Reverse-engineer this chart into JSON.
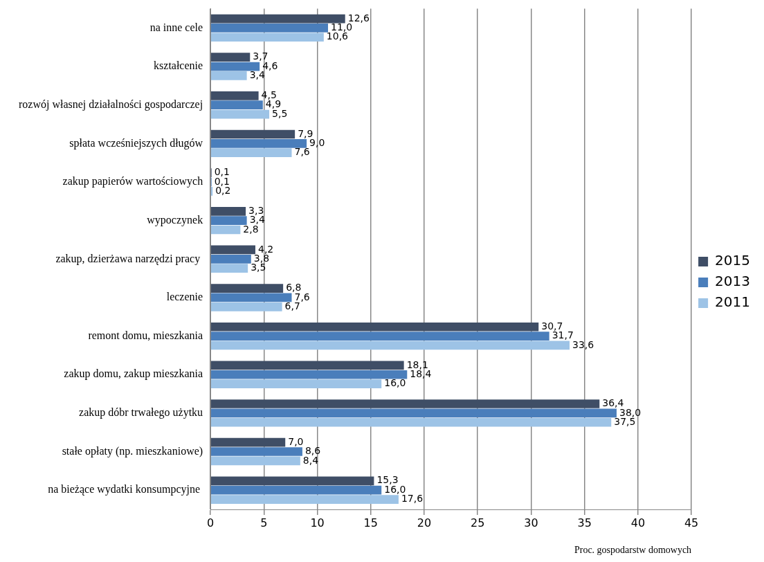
{
  "chart_data": {
    "type": "bar",
    "orientation": "horizontal",
    "xlabel": "Proc. gospodarstw domowych",
    "categories": [
      "na inne cele",
      "kształcenie",
      "rozwój własnej działalności gospodarczej",
      "spłata wcześniejszych długów",
      "zakup papierów wartościowych",
      "wypoczynek",
      "zakup, dzierżawa narzędzi pracy ",
      "leczenie",
      "remont domu, mieszkania",
      "zakup domu, zakup mieszkania",
      "zakup dóbr trwałego użytku",
      "stałe opłaty (np. mieszkaniowe)",
      "na bieżące wydatki konsumpcyjne "
    ],
    "series": [
      {
        "name": "2015",
        "color": "#3f4e66",
        "values": [
          12.6,
          3.7,
          4.5,
          7.9,
          0.1,
          3.3,
          4.2,
          6.8,
          30.7,
          18.1,
          36.4,
          7.0,
          15.3
        ],
        "value_labels": [
          "12,6",
          "3,7",
          "4,5",
          "7,9",
          "0,1",
          "3,3",
          "4,2",
          "6,8",
          "30,7",
          "18,1",
          "36,4",
          "7,0",
          "15,3"
        ]
      },
      {
        "name": "2013",
        "color": "#4a7ebb",
        "values": [
          11.0,
          4.6,
          4.9,
          9.0,
          0.1,
          3.4,
          3.8,
          7.6,
          31.7,
          18.4,
          38.0,
          8.6,
          16.0
        ],
        "value_labels": [
          "11,0",
          "4,6",
          "4,9",
          "9,0",
          "0,1",
          "3,4",
          "3,8",
          "7,6",
          "31,7",
          "18,4",
          "38,0",
          "8,6",
          "16,0"
        ]
      },
      {
        "name": "2011",
        "color": "#9dc3e6",
        "values": [
          10.6,
          3.4,
          5.5,
          7.6,
          0.2,
          2.8,
          3.5,
          6.7,
          33.6,
          16.0,
          37.5,
          8.4,
          17.6
        ],
        "value_labels": [
          "10,6",
          "3,4",
          "5,5",
          "7,6",
          "0,2",
          "2,8",
          "3,5",
          "6,7",
          "33,6",
          "16,0",
          "37,5",
          "8,4",
          "17,6"
        ]
      }
    ],
    "xlim": [
      0,
      45
    ],
    "xticks": [
      0,
      5,
      10,
      15,
      20,
      25,
      30,
      35,
      40,
      45
    ],
    "grid": "x",
    "legend": "right"
  }
}
